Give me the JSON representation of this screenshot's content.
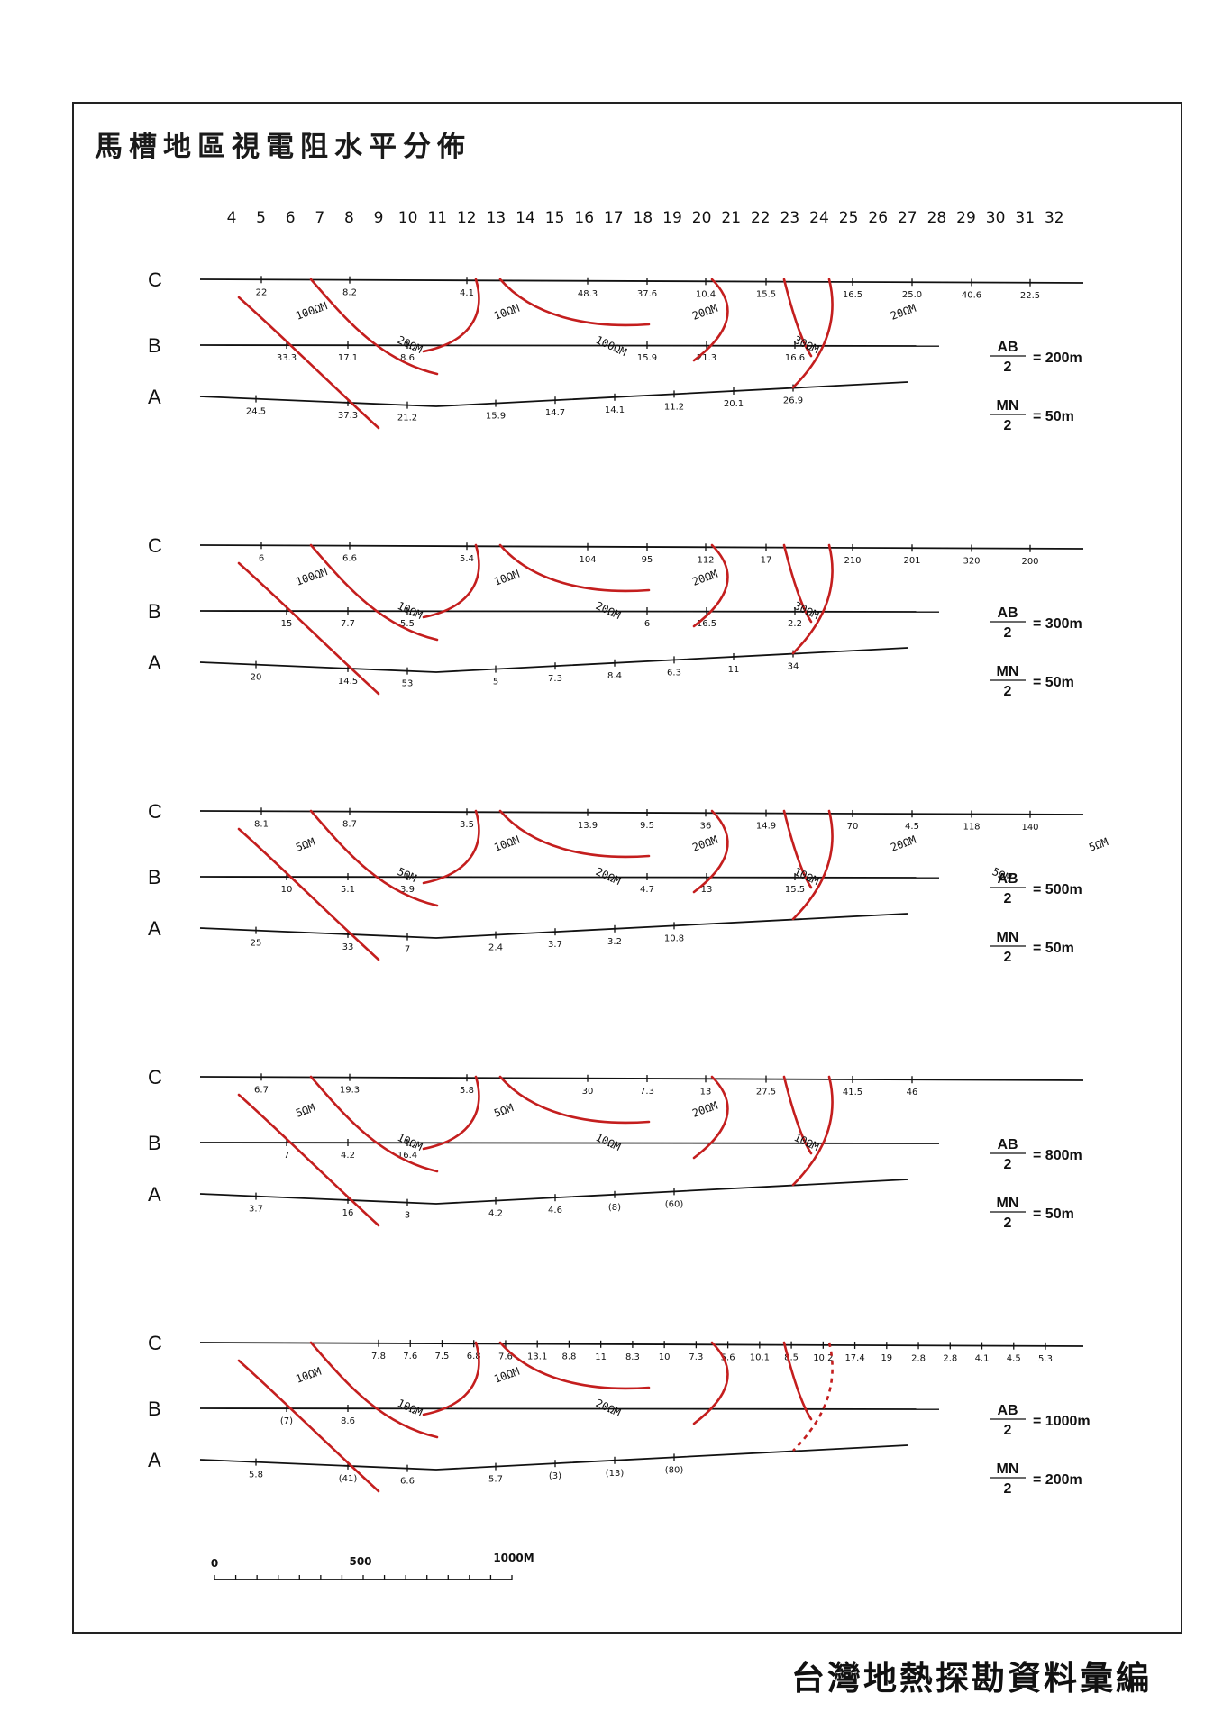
{
  "title": "馬槽地區視電阻水平分佈",
  "footer": "台灣地熱探勘資料彙編",
  "column_numbers": [
    "4",
    "5",
    "6",
    "7",
    "8",
    "9",
    "10",
    "11",
    "12",
    "13",
    "14",
    "15",
    "16",
    "17",
    "18",
    "19",
    "20",
    "21",
    "22",
    "23",
    "24",
    "25",
    "26",
    "27",
    "28",
    "29",
    "30",
    "31",
    "32"
  ],
  "line_labels": [
    "C",
    "B",
    "A"
  ],
  "panels": [
    {
      "ab": "= 200m",
      "mn": "= 50m",
      "C": [
        "22",
        "8.2",
        "4.1",
        "48.3",
        "37.6",
        "10.4",
        "15.5",
        "16.5",
        "25.0",
        "40.6",
        "22.5"
      ],
      "B": [
        "33.3",
        "17.1",
        "8.6",
        "15.9",
        "21.3",
        "16.6"
      ],
      "A": [
        "24.5",
        "37.3",
        "21.2",
        "15.9",
        "14.7",
        "14.1",
        "11.2",
        "20.1",
        "26.9"
      ],
      "iso": [
        "100ΩM",
        "20ΩM",
        "10ΩM",
        "100ΩM",
        "20ΩM",
        "30ΩM",
        "20ΩM"
      ]
    },
    {
      "ab": "= 300m",
      "mn": "= 50m",
      "C": [
        "6",
        "6.6",
        "5.4",
        "104",
        "95",
        "112",
        "17",
        "210",
        "201",
        "320",
        "200"
      ],
      "B": [
        "15",
        "7.7",
        "5.5",
        "6",
        "16.5",
        "2.2"
      ],
      "A": [
        "20",
        "14.5",
        "53",
        "5",
        "7.3",
        "8.4",
        "6.3",
        "11",
        "34"
      ],
      "iso": [
        "100ΩM",
        "10ΩM",
        "10ΩM",
        "20ΩM",
        "20ΩM",
        "30ΩM"
      ]
    },
    {
      "ab": "= 500m",
      "mn": "= 50m",
      "C": [
        "8.1",
        "8.7",
        "3.5",
        "13.9",
        "9.5",
        "36",
        "14.9",
        "70",
        "4.5",
        "118",
        "140"
      ],
      "B": [
        "10",
        "5.1",
        "3.9",
        "4.7",
        "13",
        "15.5"
      ],
      "A": [
        "25",
        "33",
        "7",
        "2.4",
        "3.7",
        "3.2",
        "10.8"
      ],
      "iso": [
        "5ΩM",
        "5ΩM",
        "10ΩM",
        "20ΩM",
        "20ΩM",
        "10ΩM",
        "20ΩM",
        "5ΩM",
        "5ΩM"
      ]
    },
    {
      "ab": "= 800m",
      "mn": "= 50m",
      "C": [
        "6.7",
        "19.3",
        "5.8",
        "30",
        "7.3",
        "13",
        "27.5",
        "41.5",
        "46"
      ],
      "B": [
        "7",
        "4.2",
        "16.4"
      ],
      "A": [
        "3.7",
        "16",
        "3",
        "4.2",
        "4.6",
        "(8)",
        "(60)"
      ],
      "iso": [
        "5ΩM",
        "10ΩM",
        "5ΩM",
        "10ΩM",
        "20ΩM",
        "10ΩM"
      ]
    },
    {
      "ab": "= 1000m",
      "mn": "= 200m",
      "C": [
        "7.8",
        "7.6",
        "7.5",
        "6.8",
        "7.6",
        "13.1",
        "8.8",
        "11",
        "8.3",
        "10",
        "7.3",
        "5.6",
        "10.1",
        "8.5",
        "10.2",
        "17.4",
        "19",
        "2.8",
        "2.8",
        "4.1",
        "4.5",
        "5.3"
      ],
      "B": [
        "(7)",
        "8.6"
      ],
      "A": [
        "5.8",
        "(41)",
        "6.6",
        "5.7",
        "(3)",
        "(13)",
        "(80)"
      ],
      "iso": [
        "10ΩM",
        "10ΩM",
        "10ΩM",
        "20ΩM"
      ]
    }
  ],
  "frac_labels": {
    "ab": "AB",
    "mn": "MN",
    "den": "2"
  },
  "scale": {
    "labels": [
      "0",
      "500",
      "1000M"
    ]
  },
  "colors": {
    "isoline": "#c41e1e",
    "ink": "#111111"
  }
}
